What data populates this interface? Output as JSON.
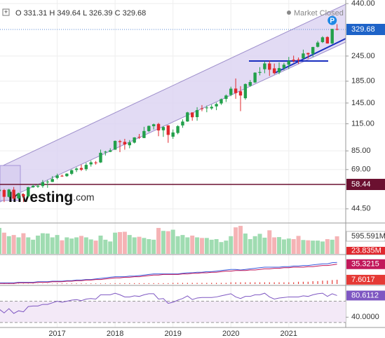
{
  "chart_data": {
    "type": "candlestick",
    "header": {
      "o_label": "O",
      "h_label": "H",
      "l_label": "L",
      "c_label": "C",
      "status": "Market Closed"
    },
    "watermark": "Investing",
    "watermark_suffix": ".com",
    "marker": "P",
    "categories": [
      null,
      null,
      null,
      null,
      null,
      null,
      null,
      null,
      null,
      null,
      null,
      null,
      "2017",
      null,
      null,
      null,
      null,
      null,
      null,
      null,
      null,
      null,
      null,
      null,
      "2018",
      null,
      null,
      null,
      null,
      null,
      null,
      null,
      null,
      null,
      null,
      null,
      "2019",
      null,
      null,
      null,
      null,
      null,
      null,
      null,
      null,
      null,
      null,
      null,
      "2020",
      null,
      null,
      null,
      null,
      null,
      null,
      null,
      null,
      null,
      null,
      null,
      "2021",
      null,
      null,
      null,
      null,
      null,
      null,
      null,
      null,
      null,
      null
    ],
    "open": [
      54.3,
      54.9,
      50.9,
      55.1,
      50.0,
      52.4,
      51.1,
      56.6,
      57.0,
      57.4,
      60.1,
      60.1,
      62.8,
      64.4,
      64.1,
      65.8,
      68.7,
      70.2,
      69.3,
      73.1,
      74.7,
      74.7,
      83.7,
      84.1,
      86.1,
      94.8,
      94.0,
      90.5,
      93.2,
      99.3,
      98.1,
      106.0,
      112.0,
      114.8,
      107.0,
      113.0,
      99.6,
      103.8,
      112.9,
      118.0,
      130.5,
      123.9,
      136.6,
      137.0,
      136.6,
      139.7,
      144.3,
      151.8,
      158.8,
      170.4,
      165.3,
      153.0,
      175.8,
      182.5,
      203.1,
      211.5,
      225.5,
      213.5,
      204.3,
      214.5,
      222.5,
      235.1,
      235.9,
      238.5,
      253.4,
      251.2,
      271.6,
      286.4,
      302.9,
      282.1,
      331.31
    ],
    "high": [
      56.9,
      55.6,
      55.6,
      56.8,
      53.3,
      52.9,
      56.9,
      58.5,
      58.7,
      61.4,
      61.4,
      64.1,
      65.9,
      65.2,
      66.2,
      69.1,
      70.7,
      72.9,
      74.4,
      76.2,
      75.9,
      86.2,
      85.1,
      87.5,
      95.5,
      96.1,
      97.2,
      95.9,
      99.0,
      102.7,
      111.2,
      112.8,
      115.3,
      116.2,
      112.2,
      113.2,
      107.9,
      113.2,
      120.8,
      131.4,
      130.7,
      138.4,
      141.7,
      140.9,
      142.4,
      145.7,
      152.5,
      159.6,
      174.0,
      190.7,
      175.0,
      180.4,
      187.5,
      204.4,
      216.4,
      231.2,
      232.9,
      225.2,
      228.1,
      227.2,
      242.6,
      246.1,
      241.1,
      263.2,
      254.4,
      271.7,
      290.2,
      305.8,
      305.3,
      332.0,
      349.64
    ],
    "low": [
      49.1,
      48.0,
      50.6,
      49.4,
      49.5,
      48.0,
      50.4,
      56.3,
      56.2,
      56.3,
      56.3,
      60.0,
      61.9,
      63.6,
      63.6,
      64.9,
      67.1,
      67.9,
      68.0,
      71.3,
      72.9,
      74.3,
      80.7,
      83.8,
      86.0,
      83.8,
      86.1,
      87.5,
      92.4,
      97.1,
      98.0,
      104.8,
      107.9,
      100.1,
      99.4,
      93.0,
      97.2,
      102.3,
      110.0,
      117.6,
      119.0,
      119.0,
      132.3,
      130.8,
      134.5,
      133.9,
      142.0,
      146.7,
      156.5,
      152.0,
      132.5,
      150.4,
      173.8,
      181.4,
      197.5,
      202.2,
      196.2,
      199.6,
      200.1,
      209.1,
      211.9,
      227.9,
      224.3,
      238.1,
      238.0,
      243.0,
      269.6,
      283.3,
      281.6,
      279.4,
      326.39
    ],
    "close": [
      55.1,
      50.9,
      55.2,
      49.9,
      53.0,
      51.2,
      56.7,
      57.5,
      57.6,
      59.9,
      60.3,
      62.1,
      64.6,
      64.0,
      65.9,
      68.5,
      69.8,
      68.9,
      72.7,
      74.8,
      74.5,
      83.2,
      84.2,
      85.5,
      95.0,
      93.8,
      91.3,
      93.5,
      98.8,
      98.6,
      106.1,
      112.3,
      114.4,
      106.8,
      110.9,
      101.6,
      104.4,
      112.0,
      117.9,
      130.6,
      123.7,
      134.0,
      136.3,
      137.9,
      139.0,
      143.4,
      151.4,
      157.7,
      170.2,
      162.0,
      157.7,
      179.2,
      183.3,
      203.5,
      205.0,
      225.5,
      210.3,
      202.5,
      214.1,
      222.4,
      231.9,
      232.4,
      235.8,
      252.2,
      249.7,
      270.9,
      284.9,
      301.9,
      281.9,
      331.6,
      329.68
    ],
    "up_color": "#22a04b",
    "down_color": "#e0282e",
    "log_scale": true,
    "ylim": [
      38,
      458
    ],
    "yticks": [
      {
        "value": 440,
        "label": "440.00"
      },
      {
        "value": 245,
        "label": "245.00"
      },
      {
        "value": 185,
        "label": "185.00"
      },
      {
        "value": 145,
        "label": "145.00"
      },
      {
        "value": 115,
        "label": "115.00"
      },
      {
        "value": 85,
        "label": "85.00"
      },
      {
        "value": 69,
        "label": "69.00"
      },
      {
        "value": 44.5,
        "label": "44.50"
      }
    ],
    "last_price": {
      "value": 329.68,
      "label": "329.68"
    },
    "hline": {
      "value": 58.44,
      "label": "58.44",
      "color": "#6b1030"
    },
    "grid": true,
    "volume": {
      "values": [
        880,
        720,
        600,
        640,
        560,
        700,
        560,
        480,
        620,
        700,
        690,
        560,
        640,
        460,
        560,
        520,
        560,
        610,
        560,
        490,
        450,
        620,
        480,
        420,
        720,
        740,
        750,
        640,
        560,
        580,
        540,
        500,
        480,
        880,
        780,
        770,
        820,
        600,
        640,
        560,
        620,
        560,
        540,
        540,
        480,
        500,
        400,
        450,
        600,
        900,
        950,
        690,
        500,
        600,
        680,
        550,
        800,
        560,
        570,
        490,
        520,
        500,
        610,
        470,
        460,
        450,
        450,
        420,
        500,
        480,
        595.591
      ],
      "ylim": [
        0,
        1000
      ],
      "labels": [
        "595.591M",
        "23.835M"
      ]
    },
    "indicator": {
      "ylim": [
        0,
        50
      ],
      "lines": [
        {
          "color": "#3b5bdb",
          "values": [
            2,
            2,
            2,
            2,
            3,
            3,
            3,
            3,
            4,
            4,
            4,
            5,
            5,
            5,
            6,
            6,
            7,
            7,
            8,
            8,
            9,
            10,
            11,
            12,
            13,
            13,
            13,
            14,
            14,
            15,
            16,
            17,
            18,
            18,
            18,
            18,
            18,
            18,
            19,
            20,
            20,
            21,
            21,
            22,
            22,
            23,
            24,
            25,
            26,
            26,
            25,
            26,
            27,
            28,
            29,
            30,
            30,
            30,
            30,
            31,
            31,
            32,
            32,
            33,
            33,
            34,
            35,
            36,
            36,
            38,
            38.5
          ]
        },
        {
          "color": "#c2185b",
          "values": [
            1,
            1,
            1,
            1,
            2,
            2,
            2,
            2,
            3,
            3,
            3,
            4,
            4,
            4,
            5,
            5,
            6,
            6,
            7,
            7,
            8,
            8,
            9,
            10,
            11,
            11,
            12,
            12,
            13,
            13,
            14,
            15,
            16,
            16,
            17,
            17,
            17,
            17,
            18,
            18,
            19,
            19,
            20,
            20,
            21,
            21,
            22,
            23,
            23,
            24,
            24,
            24,
            25,
            25,
            26,
            27,
            27,
            28,
            28,
            29,
            29,
            30,
            30,
            30,
            31,
            31,
            32,
            33,
            33,
            34,
            35.3215
          ],
          "label": "35.3215"
        }
      ],
      "histogram": {
        "color": "#e53935",
        "values": [
          0.5,
          0.5,
          0.5,
          0.5,
          0.5,
          0.5,
          0.5,
          0.5,
          0.5,
          0.5,
          0.5,
          0.5,
          1,
          1,
          1,
          1,
          1,
          1,
          1,
          1,
          1,
          1,
          1,
          1,
          1.5,
          1.5,
          1.5,
          1.5,
          1.5,
          1.5,
          1.5,
          1.5,
          1.5,
          1.5,
          1.5,
          1.5,
          2,
          2,
          2,
          2,
          2,
          2,
          2,
          2,
          2,
          2,
          2,
          2,
          3,
          3,
          3,
          3,
          3,
          3,
          3,
          3,
          3,
          3,
          3,
          3,
          3,
          3,
          4,
          4,
          4,
          5,
          5,
          6,
          6,
          7,
          7.6017
        ],
        "label": "7.6017"
      }
    },
    "rsi": {
      "color": "#7e57c2",
      "ylim": [
        22,
        97
      ],
      "levels": [
        70,
        30
      ],
      "values": [
        55,
        48,
        56,
        47,
        52,
        50,
        60,
        61,
        61,
        64,
        64,
        67,
        70,
        68,
        70,
        72,
        73,
        71,
        74,
        75,
        74,
        82,
        82,
        82,
        85,
        82,
        78,
        78,
        80,
        79,
        82,
        84,
        84,
        74,
        75,
        66,
        68,
        72,
        75,
        80,
        73,
        76,
        77,
        77,
        77,
        78,
        80,
        82,
        84,
        78,
        75,
        79,
        79,
        82,
        82,
        85,
        78,
        74,
        76,
        77,
        78,
        78,
        78,
        80,
        79,
        82,
        84,
        85,
        79,
        84,
        80.6112
      ],
      "label": "80.6112",
      "yticks": [
        {
          "value": 40,
          "label": "40.0000"
        }
      ]
    }
  }
}
